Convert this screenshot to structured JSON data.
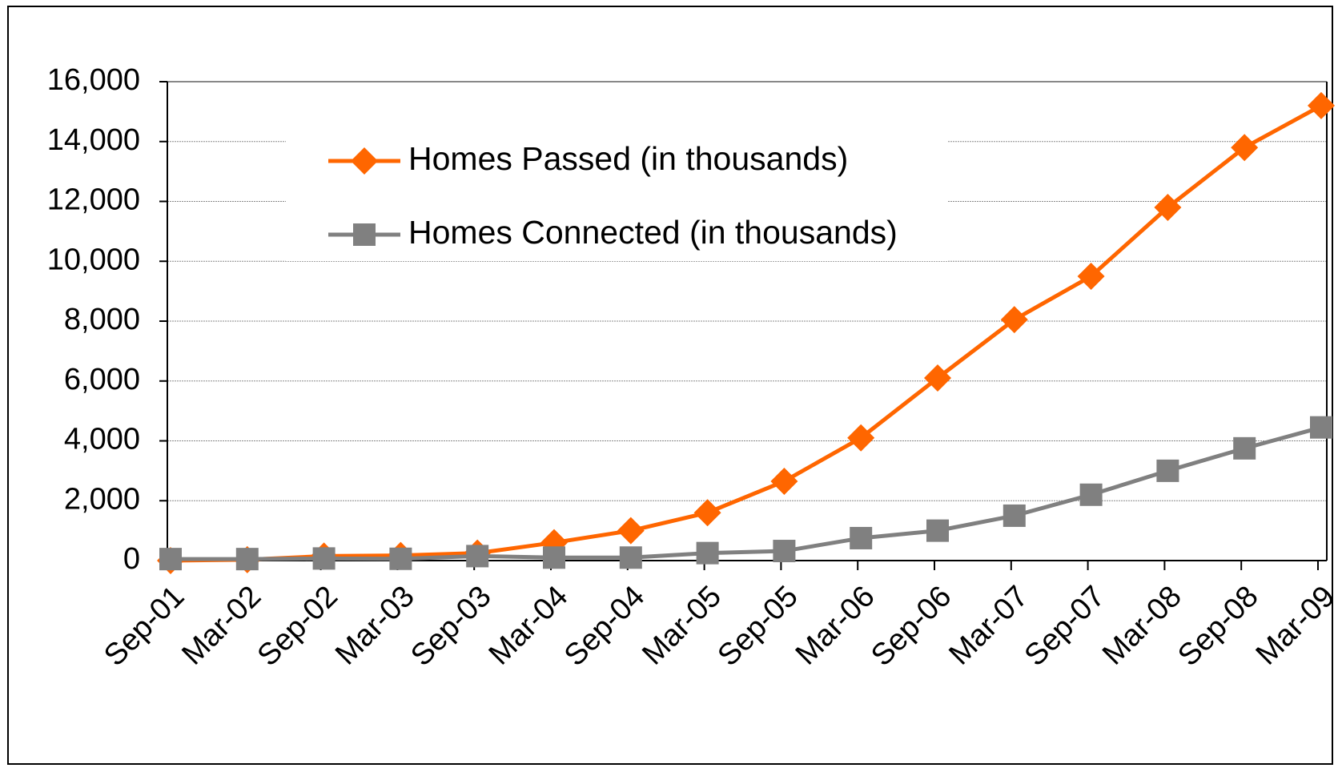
{
  "chart_data": {
    "type": "line",
    "categories": [
      "Sep-01",
      "Mar-02",
      "Sep-02",
      "Mar-03",
      "Sep-03",
      "Mar-04",
      "Sep-04",
      "Mar-05",
      "Sep-05",
      "Mar-06",
      "Sep-06",
      "Mar-07",
      "Sep-07",
      "Mar-08",
      "Sep-08",
      "Mar-09"
    ],
    "series": [
      {
        "name": "Homes Passed (in thousands)",
        "color": "#ff6600",
        "marker": "diamond",
        "values": [
          0,
          30,
          150,
          170,
          250,
          600,
          1000,
          1600,
          2650,
          4100,
          6100,
          8050,
          9500,
          11800,
          13800,
          15200
        ]
      },
      {
        "name": "Homes Connected (in thousands)",
        "color": "#808080",
        "marker": "square",
        "values": [
          50,
          50,
          70,
          60,
          150,
          100,
          100,
          250,
          320,
          750,
          1000,
          1500,
          2200,
          3000,
          3750,
          4450
        ]
      }
    ],
    "ylim": [
      0,
      16000
    ],
    "yticks": [
      0,
      {
        "value": 2000,
        "label": "2,000"
      },
      {
        "value": 4000,
        "label": "4,000"
      },
      {
        "value": 6000,
        "label": "6,000"
      },
      {
        "value": 8000,
        "label": "8,000"
      },
      {
        "value": 10000,
        "label": "10,000"
      },
      {
        "value": 12000,
        "label": "12,000"
      },
      {
        "value": 14000,
        "label": "14,000"
      },
      {
        "value": 16000,
        "label": "16,000"
      }
    ],
    "grid": true
  }
}
